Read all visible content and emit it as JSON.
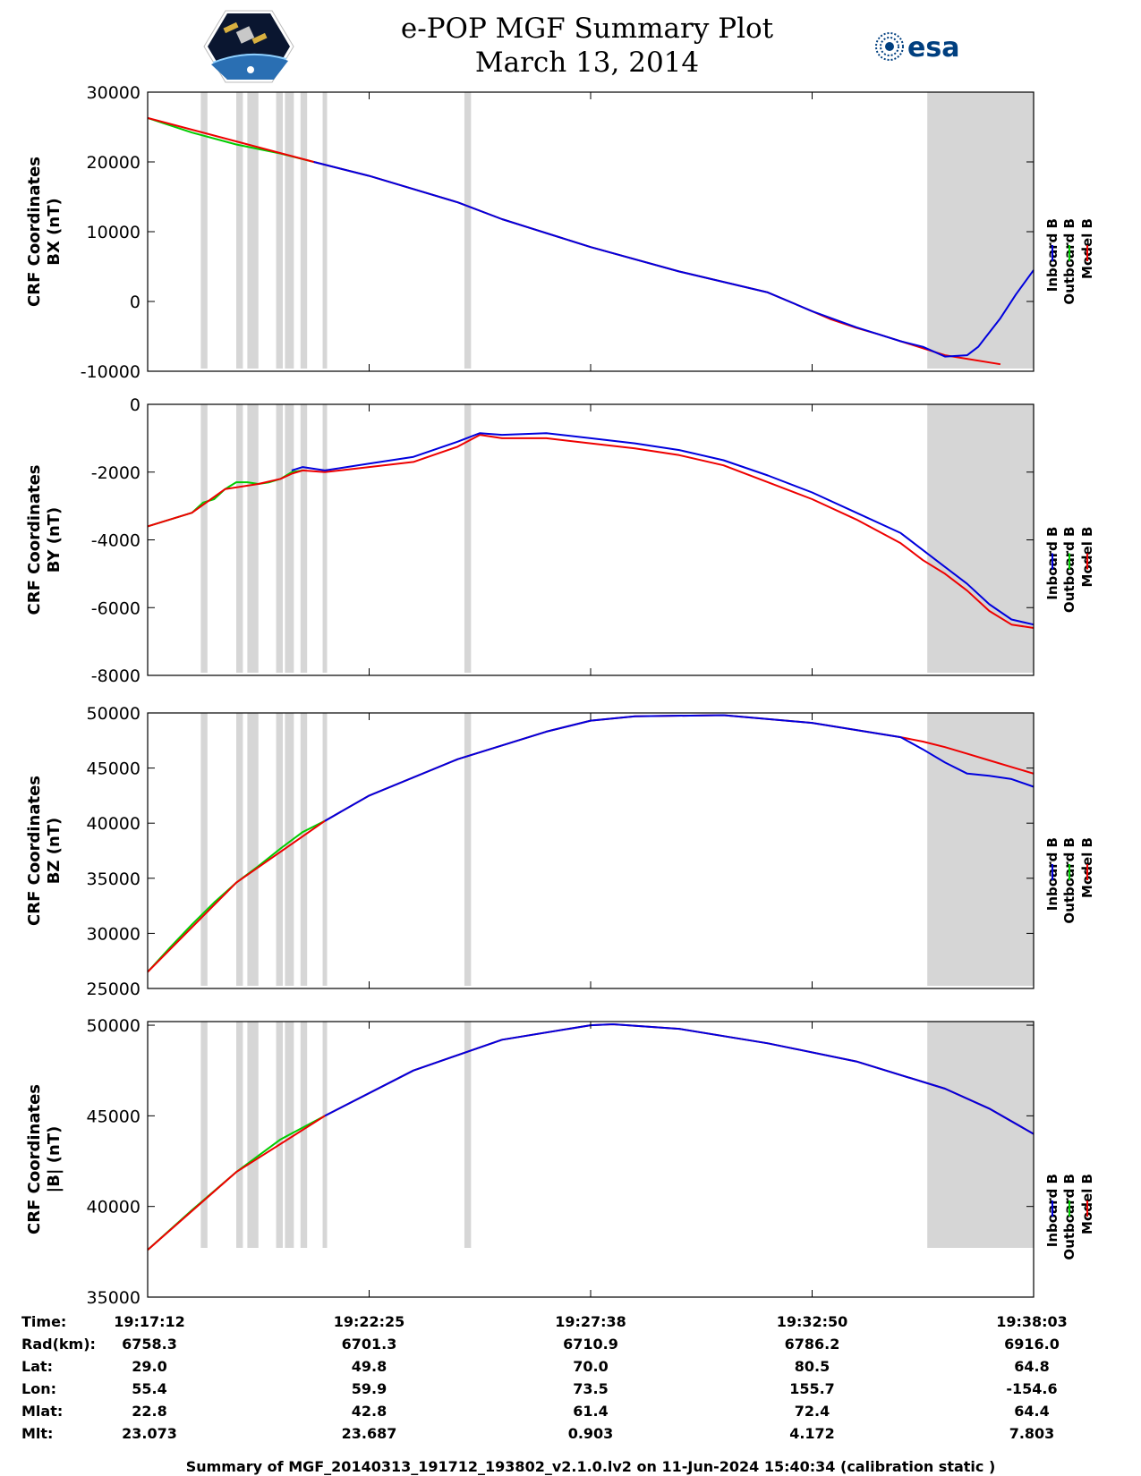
{
  "header": {
    "title": "e-POP MGF Summary Plot",
    "date": "March 13, 2014",
    "logo_left": "cassiope-satellite-logo",
    "logo_right_text": "esa"
  },
  "colors": {
    "inboard": "#0000dd",
    "outboard": "#00cc00",
    "model": "#ee0000",
    "shade": "#d6d6d6"
  },
  "legend": {
    "inboard": "Inboard B",
    "outboard": "Outboard B",
    "model": "Model B"
  },
  "chart_data": [
    {
      "type": "line",
      "id": "bx",
      "ylabel_line1": "CRF Coordinates",
      "ylabel_line2": "BX (nT)",
      "ylim": [
        -10000,
        30000
      ],
      "yticks": [
        -10000,
        0,
        10000,
        20000,
        30000
      ],
      "ytick_labels": [
        "-10000",
        "0",
        "10000",
        "20000",
        "30000"
      ],
      "series": [
        {
          "name": "Outboard B",
          "x": [
            0,
            2,
            4,
            6,
            7.5
          ],
          "values": [
            26300,
            24200,
            22500,
            21200,
            20000
          ]
        },
        {
          "name": "Model B",
          "x": [
            0,
            7.5,
            10,
            14,
            16,
            18.5,
            20,
            24,
            28,
            30,
            30.8,
            32,
            33,
            34,
            35,
            36,
            38.5
          ],
          "values": [
            26300,
            20000,
            18000,
            14200,
            11800,
            9300,
            7800,
            4300,
            1300,
            -1400,
            -2500,
            -3800,
            -4700,
            -5700,
            -6700,
            -7700,
            -9000
          ]
        },
        {
          "name": "Inboard B",
          "x": [
            7.5,
            10,
            14,
            16,
            18.5,
            20,
            24,
            28,
            30,
            32,
            34,
            35,
            36,
            37,
            37.5,
            38.5,
            39.2,
            40
          ],
          "values": [
            20000,
            18000,
            14200,
            11800,
            9300,
            7800,
            4300,
            1300,
            -1400,
            -3700,
            -5700,
            -6500,
            -7900,
            -7700,
            -6500,
            -2400,
            1000,
            4500
          ]
        }
      ],
      "shade_regions": [
        [
          2.4,
          2.7
        ],
        [
          4,
          4.3
        ],
        [
          4.5,
          5
        ],
        [
          5.8,
          6.1
        ],
        [
          6.2,
          6.6
        ],
        [
          6.9,
          7.2
        ],
        [
          7.9,
          8.1
        ],
        [
          14.3,
          14.6
        ],
        [
          35.2,
          40
        ]
      ]
    },
    {
      "type": "line",
      "id": "by",
      "ylabel_line1": "CRF Coordinates",
      "ylabel_line2": "BY (nT)",
      "ylim": [
        -8000,
        0
      ],
      "yticks": [
        -8000,
        -6000,
        -4000,
        -2000,
        0
      ],
      "ytick_labels": [
        "-8000",
        "-6000",
        "-4000",
        "-2000",
        "0"
      ],
      "series": [
        {
          "name": "Outboard B",
          "x": [
            0,
            1,
            2,
            2.5,
            3,
            3.5,
            4,
            4.5,
            5,
            5.5,
            6,
            6.5,
            7
          ],
          "values": [
            -3600,
            -3400,
            -3200,
            -2900,
            -2800,
            -2500,
            -2300,
            -2300,
            -2350,
            -2300,
            -2200,
            -2000,
            -1950
          ]
        },
        {
          "name": "Model B",
          "x": [
            0,
            2,
            3.5,
            5,
            6,
            6.5,
            7,
            8,
            10,
            12,
            14,
            15,
            16,
            18,
            20,
            22,
            24,
            26,
            28,
            30,
            32,
            34,
            35,
            36,
            37,
            38,
            39,
            40
          ],
          "values": [
            -3600,
            -3200,
            -2500,
            -2350,
            -2200,
            -2050,
            -1950,
            -2000,
            -1850,
            -1700,
            -1250,
            -900,
            -1000,
            -1000,
            -1150,
            -1300,
            -1500,
            -1800,
            -2300,
            -2800,
            -3400,
            -4100,
            -4600,
            -5000,
            -5500,
            -6100,
            -6500,
            -6600
          ]
        },
        {
          "name": "Inboard B",
          "x": [
            6.5,
            7,
            8,
            10,
            12,
            14,
            15,
            16,
            18,
            20,
            22,
            24,
            26,
            28,
            30,
            32,
            34,
            35,
            36,
            37,
            38,
            39,
            40
          ],
          "values": [
            -1950,
            -1850,
            -1950,
            -1750,
            -1550,
            -1100,
            -850,
            -900,
            -850,
            -1000,
            -1150,
            -1350,
            -1650,
            -2100,
            -2600,
            -3200,
            -3800,
            -4300,
            -4800,
            -5300,
            -5900,
            -6350,
            -6500
          ]
        }
      ],
      "shade_regions": [
        [
          2.4,
          2.7
        ],
        [
          4,
          4.3
        ],
        [
          4.5,
          5
        ],
        [
          5.8,
          6.1
        ],
        [
          6.2,
          6.6
        ],
        [
          6.9,
          7.2
        ],
        [
          7.9,
          8.1
        ],
        [
          14.3,
          14.6
        ],
        [
          35.2,
          40
        ]
      ]
    },
    {
      "type": "line",
      "id": "bz",
      "ylabel_line1": "CRF Coordinates",
      "ylabel_line2": "BZ (nT)",
      "ylim": [
        25000,
        50000
      ],
      "yticks": [
        25000,
        30000,
        35000,
        40000,
        45000,
        50000
      ],
      "ytick_labels": [
        "25000",
        "30000",
        "35000",
        "40000",
        "45000",
        "50000"
      ],
      "series": [
        {
          "name": "Outboard B",
          "x": [
            0,
            1,
            2,
            3,
            4,
            5,
            6,
            7,
            8
          ],
          "values": [
            26500,
            28700,
            30800,
            32800,
            34600,
            36100,
            37700,
            39200,
            40200
          ]
        },
        {
          "name": "Model B",
          "x": [
            0,
            4,
            8,
            10,
            14,
            18,
            20,
            22,
            26,
            30,
            34,
            35,
            36,
            37,
            38,
            39,
            40
          ],
          "values": [
            26500,
            34600,
            40200,
            42500,
            45800,
            48300,
            49300,
            49700,
            49800,
            49100,
            47800,
            47400,
            46900,
            46300,
            45700,
            45100,
            44500
          ]
        },
        {
          "name": "Inboard B",
          "x": [
            8,
            10,
            14,
            18,
            20,
            22,
            26,
            30,
            34,
            35,
            36,
            37,
            38,
            39,
            40
          ],
          "values": [
            40200,
            42500,
            45800,
            48300,
            49300,
            49700,
            49800,
            49100,
            47800,
            46700,
            45500,
            44500,
            44300,
            44000,
            43300
          ]
        }
      ],
      "shade_regions": [
        [
          2.4,
          2.7
        ],
        [
          4,
          4.3
        ],
        [
          4.5,
          5
        ],
        [
          5.8,
          6.1
        ],
        [
          6.2,
          6.6
        ],
        [
          6.9,
          7.2
        ],
        [
          7.9,
          8.1
        ],
        [
          14.3,
          14.6
        ],
        [
          35.2,
          40
        ]
      ]
    },
    {
      "type": "line",
      "id": "bmag",
      "ylabel_line1": "CRF Coordinates",
      "ylabel_line2": "|B| (nT)",
      "ylim": [
        35000,
        50200
      ],
      "yticks": [
        35000,
        40000,
        45000,
        50000
      ],
      "ytick_labels": [
        "35000",
        "40000",
        "45000",
        "50000"
      ],
      "series": [
        {
          "name": "Outboard B",
          "x": [
            0,
            2,
            4,
            6,
            8
          ],
          "values": [
            37600,
            39800,
            41900,
            43700,
            45000
          ]
        },
        {
          "name": "Model B",
          "x": [
            0,
            4,
            8,
            12,
            16,
            20,
            21,
            24,
            28,
            32,
            36,
            38,
            40
          ],
          "values": [
            37600,
            41900,
            45000,
            47500,
            49200,
            50000,
            50050,
            49800,
            49000,
            48000,
            46500,
            45400,
            44000
          ]
        },
        {
          "name": "Inboard B",
          "x": [
            8,
            12,
            16,
            20,
            21,
            24,
            28,
            32,
            36,
            38,
            40
          ],
          "values": [
            45000,
            47500,
            49200,
            50000,
            50050,
            49800,
            49000,
            48000,
            46500,
            45400,
            44000
          ]
        }
      ],
      "shade_regions": [
        [
          2.4,
          2.7
        ],
        [
          4,
          4.3
        ],
        [
          4.5,
          5
        ],
        [
          5.8,
          6.1
        ],
        [
          6.2,
          6.6
        ],
        [
          6.9,
          7.2
        ],
        [
          7.9,
          8.1
        ],
        [
          14.3,
          14.6
        ],
        [
          35.2,
          40
        ]
      ]
    }
  ],
  "xaxis": {
    "range_minutes": [
      0,
      40
    ],
    "tick_minutes": [
      0,
      10,
      20,
      30,
      40
    ]
  },
  "info_table": {
    "rows": [
      {
        "label": "Time:",
        "values": [
          "19:17:12",
          "19:22:25",
          "19:27:38",
          "19:32:50",
          "19:38:03"
        ]
      },
      {
        "label": "Rad(km):",
        "values": [
          "6758.3",
          "6701.3",
          "6710.9",
          "6786.2",
          "6916.0"
        ]
      },
      {
        "label": "Lat:",
        "values": [
          "29.0",
          "49.8",
          "70.0",
          "80.5",
          "64.8"
        ]
      },
      {
        "label": "Lon:",
        "values": [
          "55.4",
          "59.9",
          "73.5",
          "155.7",
          "-154.6"
        ]
      },
      {
        "label": "Mlat:",
        "values": [
          "22.8",
          "42.8",
          "61.4",
          "72.4",
          "64.4"
        ]
      },
      {
        "label": "Mlt:",
        "values": [
          "23.073",
          "23.687",
          "0.903",
          "4.172",
          "7.803"
        ]
      }
    ]
  },
  "footer": "Summary of MGF_20140313_191712_193802_v2.1.0.lv2 on 11-Jun-2024 15:40:34 (calibration static )"
}
